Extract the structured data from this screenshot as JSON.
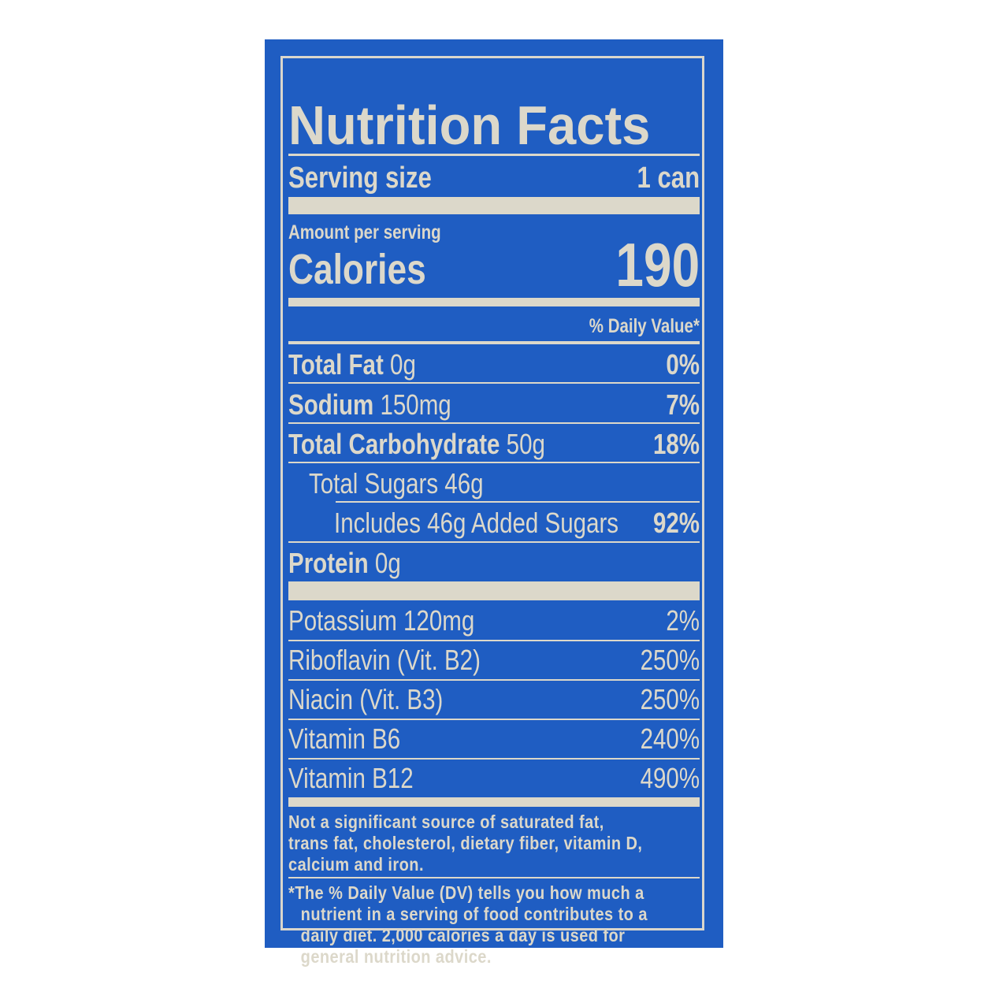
{
  "title": "Nutrition Facts",
  "serving": {
    "label": "Serving size",
    "value": "1 can"
  },
  "amount_per_serving": "Amount per serving",
  "calories": {
    "label": "Calories",
    "value": "190"
  },
  "daily_value_header": "% Daily Value*",
  "nutrients": [
    {
      "name": "Total Fat",
      "amount": "0g",
      "dv": "0%"
    },
    {
      "name": "Sodium",
      "amount": "150mg",
      "dv": "7%"
    },
    {
      "name": "Total Carbohydrate",
      "amount": "50g",
      "dv": "18%"
    },
    {
      "name": "Total Sugars 46g",
      "amount": "",
      "dv": ""
    },
    {
      "name": "Includes 46g Added Sugars",
      "amount": "",
      "dv": "92%"
    },
    {
      "name": "Protein",
      "amount": "0g",
      "dv": ""
    }
  ],
  "vitamins": [
    {
      "name": "Potassium 120mg",
      "dv": "2%"
    },
    {
      "name": "Riboflavin (Vit. B2)",
      "dv": "250%"
    },
    {
      "name": "Niacin (Vit. B3)",
      "dv": "250%"
    },
    {
      "name": "Vitamin B6",
      "dv": "240%"
    },
    {
      "name": "Vitamin B12",
      "dv": "490%"
    }
  ],
  "footnote_1": [
    "Not a significant source of saturated fat,",
    "trans fat, cholesterol, dietary fiber, vitamin D,",
    "calcium and iron."
  ],
  "footnote_2": [
    "*The % Daily Value (DV) tells you how much a",
    "nutrient in a serving of food contributes to a",
    "daily diet. 2,000 calories a day is used for",
    "general nutrition advice."
  ],
  "colors": {
    "background": "#1f5dc2",
    "ink": "#dcd8ca"
  }
}
